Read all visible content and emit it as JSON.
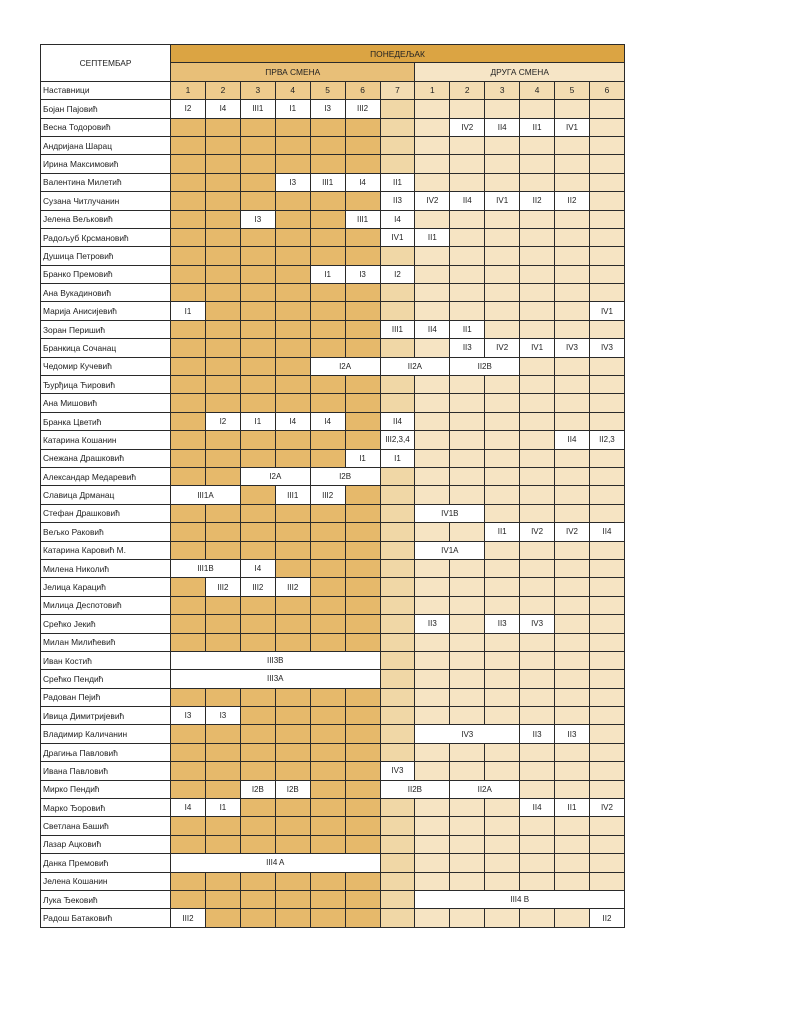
{
  "header": {
    "month": "СЕПТЕМБАР",
    "day": "ПОНЕДЕЉАК",
    "first_shift": "ПРВА СМЕНА",
    "second_shift": "ДРУГА СМЕНА",
    "teachers_label": "Наставници",
    "first_shift_periods": [
      "1",
      "2",
      "3",
      "4",
      "5",
      "6",
      "7"
    ],
    "second_shift_periods": [
      "1",
      "2",
      "3",
      "4",
      "5",
      "6"
    ]
  },
  "colors": {
    "day": "#dba443",
    "first_shift": "#e6b96b",
    "first_shift_period7": "#f0d7a6",
    "second_shift": "#f6e4c3",
    "lesson": "#ffffff"
  },
  "rows": [
    {
      "name": "Бојан Пајовић",
      "lessons": [
        {
          "slot": 1,
          "span": 1,
          "text": "I2"
        },
        {
          "slot": 2,
          "span": 1,
          "text": "I4"
        },
        {
          "slot": 3,
          "span": 1,
          "text": "III1"
        },
        {
          "slot": 4,
          "span": 1,
          "text": "I1"
        },
        {
          "slot": 5,
          "span": 1,
          "text": "I3"
        },
        {
          "slot": 6,
          "span": 1,
          "text": "III2"
        }
      ]
    },
    {
      "name": "Весна Тодоровић",
      "lessons": [
        {
          "slot": 9,
          "span": 1,
          "text": "IV2"
        },
        {
          "slot": 10,
          "span": 1,
          "text": "II4"
        },
        {
          "slot": 11,
          "span": 1,
          "text": "II1"
        },
        {
          "slot": 12,
          "span": 1,
          "text": "IV1"
        }
      ]
    },
    {
      "name": "Андријана Шарац",
      "lessons": []
    },
    {
      "name": "Ирина Максимовић",
      "lessons": []
    },
    {
      "name": "Валентина Милетић",
      "lessons": [
        {
          "slot": 4,
          "span": 1,
          "text": "I3"
        },
        {
          "slot": 5,
          "span": 1,
          "text": "III1"
        },
        {
          "slot": 6,
          "span": 1,
          "text": "I4"
        },
        {
          "slot": 7,
          "span": 1,
          "text": "II1"
        }
      ]
    },
    {
      "name": "Сузана Читлучанин",
      "lessons": [
        {
          "slot": 7,
          "span": 1,
          "text": "II3"
        },
        {
          "slot": 8,
          "span": 1,
          "text": "IV2"
        },
        {
          "slot": 9,
          "span": 1,
          "text": "II4"
        },
        {
          "slot": 10,
          "span": 1,
          "text": "IV1"
        },
        {
          "slot": 11,
          "span": 1,
          "text": "II2"
        },
        {
          "slot": 12,
          "span": 1,
          "text": "II2"
        }
      ]
    },
    {
      "name": "Јелена Вељковић",
      "lessons": [
        {
          "slot": 3,
          "span": 1,
          "text": "I3"
        },
        {
          "slot": 6,
          "span": 1,
          "text": "III1"
        },
        {
          "slot": 7,
          "span": 1,
          "text": "I4"
        }
      ]
    },
    {
      "name": "Радољуб Крсмановић",
      "lessons": [
        {
          "slot": 7,
          "span": 1,
          "text": "IV1"
        },
        {
          "slot": 8,
          "span": 1,
          "text": "II1"
        }
      ]
    },
    {
      "name": "Душица Петровић",
      "lessons": []
    },
    {
      "name": "Бранко Премовић",
      "lessons": [
        {
          "slot": 5,
          "span": 1,
          "text": "I1"
        },
        {
          "slot": 6,
          "span": 1,
          "text": "I3"
        },
        {
          "slot": 7,
          "span": 1,
          "text": "I2"
        }
      ]
    },
    {
      "name": "Ана Вукадиновић",
      "lessons": []
    },
    {
      "name": "Марија Анисијевић",
      "lessons": [
        {
          "slot": 1,
          "span": 1,
          "text": "I1"
        },
        {
          "slot": 13,
          "span": 1,
          "text": "IV1"
        }
      ]
    },
    {
      "name": "Зоран Перишић",
      "lessons": [
        {
          "slot": 7,
          "span": 1,
          "text": "III1"
        },
        {
          "slot": 8,
          "span": 1,
          "text": "II4"
        },
        {
          "slot": 9,
          "span": 1,
          "text": "II1"
        }
      ]
    },
    {
      "name": "Бранкица Сочанац",
      "lessons": [
        {
          "slot": 9,
          "span": 1,
          "text": "II3"
        },
        {
          "slot": 10,
          "span": 1,
          "text": "IV2"
        },
        {
          "slot": 11,
          "span": 1,
          "text": "IV1"
        },
        {
          "slot": 12,
          "span": 1,
          "text": "IV3"
        },
        {
          "slot": 13,
          "span": 1,
          "text": "IV3"
        }
      ]
    },
    {
      "name": "Чедомир Кучевић",
      "lessons": [
        {
          "slot": 5,
          "span": 2,
          "text": "I2A"
        },
        {
          "slot": 7,
          "span": 2,
          "text": "II2A"
        },
        {
          "slot": 9,
          "span": 2,
          "text": "II2B"
        }
      ]
    },
    {
      "name": "Ђурђица Ћировић",
      "lessons": []
    },
    {
      "name": "Ана Мишовић",
      "lessons": []
    },
    {
      "name": "Бранка Цветић",
      "lessons": [
        {
          "slot": 2,
          "span": 1,
          "text": "I2"
        },
        {
          "slot": 3,
          "span": 1,
          "text": "I1"
        },
        {
          "slot": 4,
          "span": 1,
          "text": "I4"
        },
        {
          "slot": 5,
          "span": 1,
          "text": "I4"
        },
        {
          "slot": 7,
          "span": 1,
          "text": "II4"
        }
      ]
    },
    {
      "name": "Катарина Кошанин",
      "lessons": [
        {
          "slot": 7,
          "span": 1,
          "text": "III2,3,4"
        },
        {
          "slot": 12,
          "span": 1,
          "text": "II4"
        },
        {
          "slot": 13,
          "span": 1,
          "text": "II2,3"
        }
      ]
    },
    {
      "name": "Снежана Драшковић",
      "lessons": [
        {
          "slot": 6,
          "span": 1,
          "text": "I1"
        },
        {
          "slot": 7,
          "span": 1,
          "text": "I1"
        }
      ]
    },
    {
      "name": "Александар Медаревић",
      "lessons": [
        {
          "slot": 3,
          "span": 2,
          "text": "I2A"
        },
        {
          "slot": 5,
          "span": 2,
          "text": "I2B"
        }
      ]
    },
    {
      "name": "Славица Дрманац",
      "lessons": [
        {
          "slot": 1,
          "span": 2,
          "text": "III1A"
        },
        {
          "slot": 4,
          "span": 1,
          "text": "III1"
        },
        {
          "slot": 5,
          "span": 1,
          "text": "III2"
        }
      ]
    },
    {
      "name": "Стефан Драшковић",
      "lessons": [
        {
          "slot": 8,
          "span": 2,
          "text": "IV1B"
        }
      ]
    },
    {
      "name": "Вељко Раковић",
      "lessons": [
        {
          "slot": 10,
          "span": 1,
          "text": "II1"
        },
        {
          "slot": 11,
          "span": 1,
          "text": "IV2"
        },
        {
          "slot": 12,
          "span": 1,
          "text": "IV2"
        },
        {
          "slot": 13,
          "span": 1,
          "text": "II4"
        }
      ]
    },
    {
      "name": "Катарина Каровић М.",
      "lessons": [
        {
          "slot": 8,
          "span": 2,
          "text": "IV1A"
        }
      ]
    },
    {
      "name": "Милена Николић",
      "lessons": [
        {
          "slot": 1,
          "span": 2,
          "text": "III1B"
        },
        {
          "slot": 3,
          "span": 1,
          "text": "I4"
        }
      ]
    },
    {
      "name": "Јелица Карацић",
      "lessons": [
        {
          "slot": 2,
          "span": 1,
          "text": "III2"
        },
        {
          "slot": 3,
          "span": 1,
          "text": "III2"
        },
        {
          "slot": 4,
          "span": 1,
          "text": "III2"
        }
      ]
    },
    {
      "name": "Милица Деспотовић",
      "lessons": []
    },
    {
      "name": "Срећко Јекић",
      "lessons": [
        {
          "slot": 8,
          "span": 1,
          "text": "II3"
        },
        {
          "slot": 10,
          "span": 1,
          "text": "II3"
        },
        {
          "slot": 11,
          "span": 1,
          "text": "IV3"
        }
      ]
    },
    {
      "name": "Милан Милићевић",
      "lessons": []
    },
    {
      "name": "Иван Костић",
      "lessons": [
        {
          "slot": 1,
          "span": 6,
          "text": "III3B"
        }
      ]
    },
    {
      "name": "Срећко Пендић",
      "lessons": [
        {
          "slot": 1,
          "span": 6,
          "text": "III3A"
        }
      ]
    },
    {
      "name": "Радован Пејић",
      "lessons": []
    },
    {
      "name": "Ивица Димитријевић",
      "lessons": [
        {
          "slot": 1,
          "span": 1,
          "text": "I3"
        },
        {
          "slot": 2,
          "span": 1,
          "text": "I3"
        }
      ]
    },
    {
      "name": "Владимир Каличанин",
      "lessons": [
        {
          "slot": 8,
          "span": 3,
          "text": "IV3"
        },
        {
          "slot": 11,
          "span": 1,
          "text": "II3"
        },
        {
          "slot": 12,
          "span": 1,
          "text": "II3"
        }
      ]
    },
    {
      "name": "Драгиња Павловић",
      "lessons": []
    },
    {
      "name": "Ивана Павловић",
      "lessons": [
        {
          "slot": 7,
          "span": 1,
          "text": "IV3"
        }
      ]
    },
    {
      "name": "Мирко Пендић",
      "lessons": [
        {
          "slot": 3,
          "span": 1,
          "text": "I2B"
        },
        {
          "slot": 4,
          "span": 1,
          "text": "I2B"
        },
        {
          "slot": 7,
          "span": 2,
          "text": "II2B"
        },
        {
          "slot": 9,
          "span": 2,
          "text": "II2A"
        }
      ]
    },
    {
      "name": "Марко Ђоровић",
      "lessons": [
        {
          "slot": 1,
          "span": 1,
          "text": "I4"
        },
        {
          "slot": 2,
          "span": 1,
          "text": "I1"
        },
        {
          "slot": 11,
          "span": 1,
          "text": "II4"
        },
        {
          "slot": 12,
          "span": 1,
          "text": "II1"
        },
        {
          "slot": 13,
          "span": 1,
          "text": "IV2"
        }
      ]
    },
    {
      "name": "Светлана Башић",
      "lessons": []
    },
    {
      "name": "Лазар Ацковић",
      "lessons": []
    },
    {
      "name": "Данка Премовић",
      "lessons": [
        {
          "slot": 1,
          "span": 6,
          "text": "III4 A"
        }
      ]
    },
    {
      "name": "Јелена Кошанин",
      "lessons": []
    },
    {
      "name": "Лука Ђековић",
      "lessons": [
        {
          "slot": 8,
          "span": 6,
          "text": "III4 B"
        }
      ]
    },
    {
      "name": "Радош Батаковић",
      "lessons": [
        {
          "slot": 1,
          "span": 1,
          "text": "III2"
        },
        {
          "slot": 13,
          "span": 1,
          "text": "II2"
        }
      ]
    }
  ]
}
